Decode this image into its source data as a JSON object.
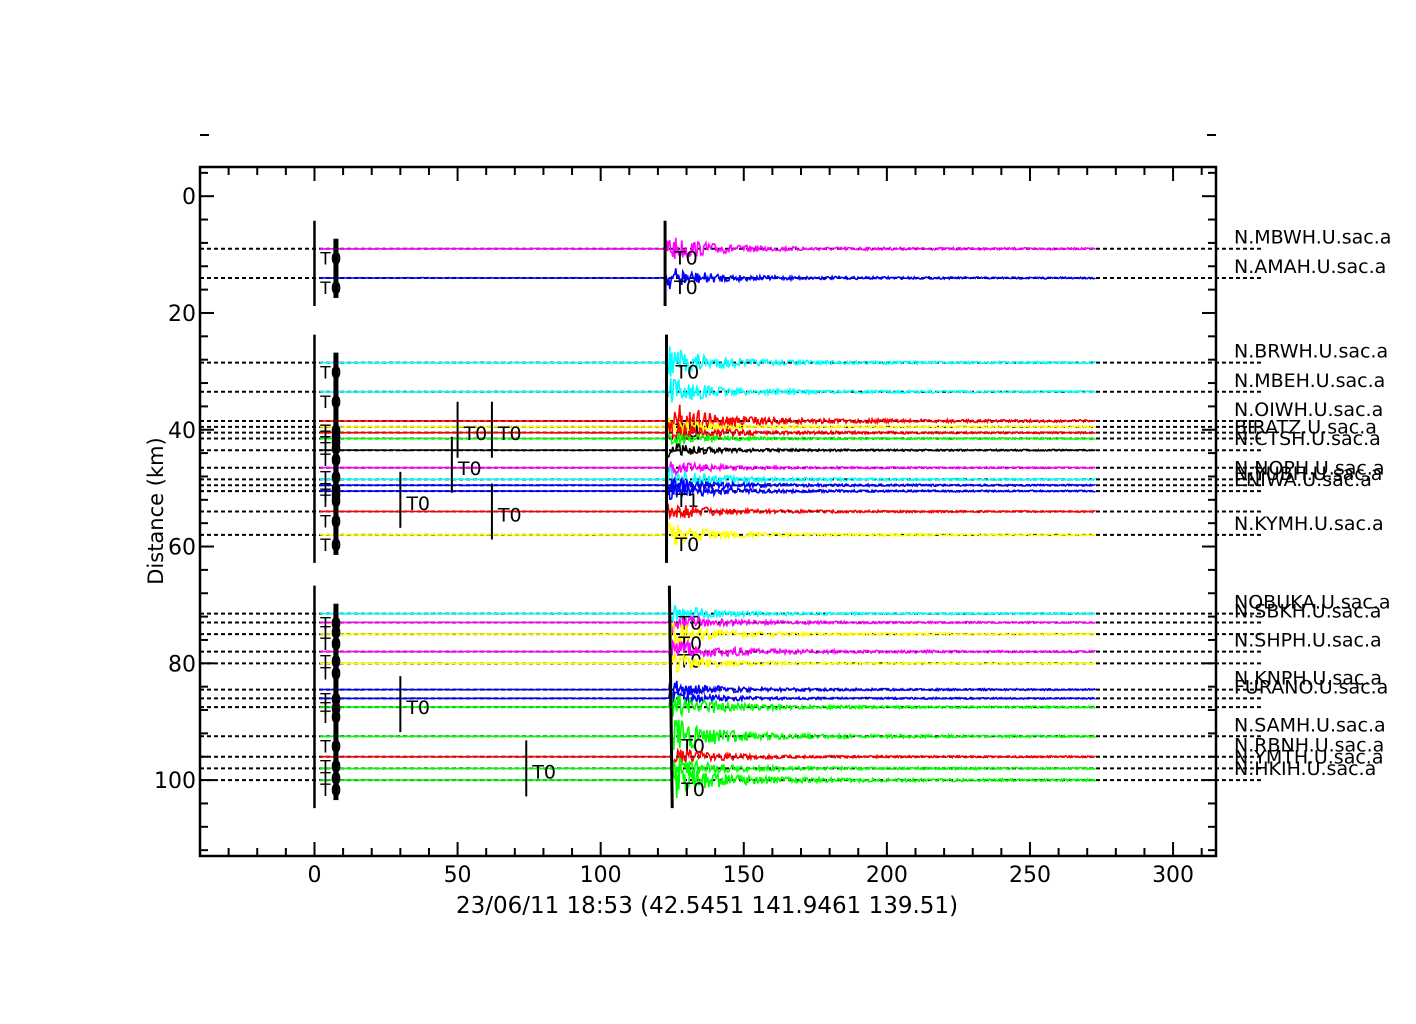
{
  "chart_data": {
    "type": "line",
    "title": "",
    "caption": "23/06/11  18:53  (42.5451  141.9461  139.51)",
    "xlabel": "",
    "ylabel": "Distance (km)",
    "xlim": [
      -40,
      315
    ],
    "ylim": [
      -5,
      113
    ],
    "xticks": [
      0,
      50,
      100,
      150,
      200,
      250,
      300
    ],
    "yticks": [
      0,
      20,
      40,
      60,
      80,
      100
    ],
    "grid": false,
    "trace_end_time": 273,
    "colors": {
      "magenta": "#ff00ff",
      "blue": "#0000ff",
      "cyan": "#00ffff",
      "red": "#ff0000",
      "yellow": "#ffff00",
      "black": "#000000",
      "green": "#00ff00"
    },
    "series": [
      {
        "name": "N.MBWH.U.sac.a",
        "distance": 9.0,
        "color": "magenta",
        "arrival": 122.5,
        "amp": 6,
        "marker": "T0"
      },
      {
        "name": "N.AMAH.U.sac.a",
        "distance": 14.0,
        "color": "blue",
        "arrival": 122.5,
        "amp": 5,
        "marker": "T0"
      },
      {
        "name": "N.BRWH.U.sac.a",
        "distance": 28.5,
        "color": "cyan",
        "arrival": 123.0,
        "amp": 7,
        "marker": "T0"
      },
      {
        "name": "N.MBEH.U.sac.a",
        "distance": 33.5,
        "color": "cyan",
        "arrival": 123.0,
        "amp": 6,
        "marker": ""
      },
      {
        "name": "N.OIWH.U.sac.a",
        "distance": 38.5,
        "color": "red",
        "arrival": 123.0,
        "amp": 9,
        "marker": "T0"
      },
      {
        "name": "",
        "distance": 39.5,
        "color": "yellow",
        "arrival": 123.0,
        "amp": 4,
        "marker": ""
      },
      {
        "name": "",
        "distance": 40.5,
        "color": "red",
        "arrival": 123.0,
        "amp": 5,
        "marker": ""
      },
      {
        "name": "BIRATZ.U.sac.a",
        "distance": 41.5,
        "color": "green",
        "arrival": 123.0,
        "amp": 3,
        "marker": ""
      },
      {
        "name": "N.CTSH.U.sac.a",
        "distance": 43.5,
        "color": "black",
        "arrival": 123.0,
        "amp": 3,
        "marker": ""
      },
      {
        "name": "",
        "distance": 46.5,
        "color": "magenta",
        "arrival": 123.0,
        "amp": 3,
        "marker": ""
      },
      {
        "name": "N.NOPH.U.sac.a",
        "distance": 48.5,
        "color": "cyan",
        "arrival": 123.0,
        "amp": 5,
        "marker": ""
      },
      {
        "name": "N.YUBH.U.sac.a",
        "distance": 49.5,
        "color": "blue",
        "arrival": 123.0,
        "amp": 4,
        "marker": ""
      },
      {
        "name": "ENIWA.U.sac.a",
        "distance": 50.5,
        "color": "blue",
        "arrival": 123.0,
        "amp": 4,
        "marker": "T1"
      },
      {
        "name": "",
        "distance": 54.0,
        "color": "red",
        "arrival": 123.0,
        "amp": 4,
        "marker": ""
      },
      {
        "name": "N.KYMH.U.sac.a",
        "distance": 58.0,
        "color": "yellow",
        "arrival": 123.0,
        "amp": 5,
        "marker": "T0"
      },
      {
        "name": "NOBUKA.U.sac.a",
        "distance": 71.5,
        "color": "cyan",
        "arrival": 124.0,
        "amp": 4,
        "marker": "T0"
      },
      {
        "name": "N.SBKH.U.sac.a",
        "distance": 73.0,
        "color": "magenta",
        "arrival": 124.0,
        "amp": 4,
        "marker": ""
      },
      {
        "name": "",
        "distance": 75.0,
        "color": "yellow",
        "arrival": 124.0,
        "amp": 5,
        "marker": "T0"
      },
      {
        "name": "N.SHPH.U.sac.a",
        "distance": 78.0,
        "color": "magenta",
        "arrival": 124.0,
        "amp": 6,
        "marker": "T0"
      },
      {
        "name": "",
        "distance": 80.0,
        "color": "yellow",
        "arrival": 124.0,
        "amp": 4,
        "marker": ""
      },
      {
        "name": "N.KNPH.U.sac.a",
        "distance": 84.5,
        "color": "blue",
        "arrival": 124.0,
        "amp": 4,
        "marker": ""
      },
      {
        "name": "FURANO.U.sac.a",
        "distance": 86.0,
        "color": "blue",
        "arrival": 124.0,
        "amp": 3,
        "marker": ""
      },
      {
        "name": "",
        "distance": 87.5,
        "color": "green",
        "arrival": 124.0,
        "amp": 6,
        "marker": ""
      },
      {
        "name": "N.SAMH.U.sac.a",
        "distance": 92.5,
        "color": "green",
        "arrival": 125.0,
        "amp": 8,
        "marker": "T0"
      },
      {
        "name": "N.RBNH.U.sac.a",
        "distance": 96.0,
        "color": "red",
        "arrival": 125.0,
        "amp": 4,
        "marker": ""
      },
      {
        "name": "N.YMTH.U.sac.a",
        "distance": 98.0,
        "color": "green",
        "arrival": 125.0,
        "amp": 5,
        "marker": ""
      },
      {
        "name": "N.HKIH.U.sac.a",
        "distance": 100.0,
        "color": "green",
        "arrival": 125.0,
        "amp": 8,
        "marker": "T0"
      }
    ],
    "t0_markers": [
      {
        "time": 50,
        "distance": 40.0
      },
      {
        "time": 62,
        "distance": 40.0
      },
      {
        "time": 48,
        "distance": 46.0
      },
      {
        "time": 30,
        "distance": 52.0
      },
      {
        "time": 62,
        "distance": 54.0
      },
      {
        "time": 30,
        "distance": 87.0
      },
      {
        "time": 74,
        "distance": 98.0
      }
    ],
    "legend": "right"
  }
}
